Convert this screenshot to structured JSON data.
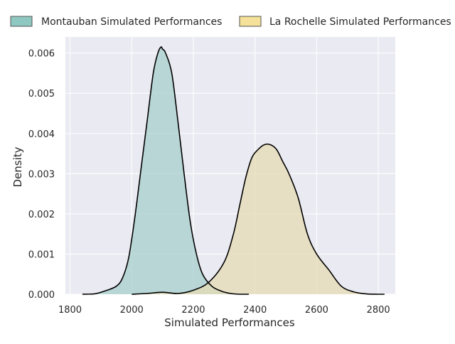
{
  "chart_data": {
    "type": "area",
    "title": "",
    "xlabel": "Simulated Performances",
    "ylabel": "Density",
    "xlim": [
      1785,
      2855
    ],
    "ylim": [
      0,
      0.0064
    ],
    "x_ticks": [
      1800,
      2000,
      2200,
      2400,
      2600,
      2800
    ],
    "y_ticks": [
      0.0,
      0.001,
      0.002,
      0.003,
      0.004,
      0.005,
      0.006
    ],
    "x_tick_labels": [
      "1800",
      "2000",
      "2200",
      "2400",
      "2600",
      "2800"
    ],
    "y_tick_labels": [
      "0.000",
      "0.001",
      "0.002",
      "0.003",
      "0.004",
      "0.005",
      "0.006"
    ],
    "grid": true,
    "legend_position": "top",
    "series": [
      {
        "name": "Montauban Simulated Performances",
        "fill_color": "#a8cfcc",
        "legend_color": "#8ec8c0",
        "x": [
          1840,
          1880,
          1920,
          1950,
          1970,
          1990,
          2010,
          2030,
          2050,
          2070,
          2085,
          2095,
          2100,
          2110,
          2130,
          2150,
          2170,
          2190,
          2210,
          2230,
          2260,
          2290,
          2320,
          2350,
          2380
        ],
        "y": [
          0.0,
          1e-05,
          0.0001,
          0.0002,
          0.0004,
          0.0009,
          0.0019,
          0.0031,
          0.0043,
          0.0055,
          0.006,
          0.00615,
          0.0061,
          0.006,
          0.0055,
          0.0043,
          0.003,
          0.0018,
          0.001,
          0.0005,
          0.0002,
          8e-05,
          2e-05,
          0.0,
          0.0
        ]
      },
      {
        "name": "La Rochelle Simulated Performances",
        "fill_color": "#e6dbb4",
        "legend_color": "#f5e199",
        "x": [
          2000,
          2050,
          2100,
          2150,
          2200,
          2250,
          2300,
          2330,
          2350,
          2370,
          2390,
          2410,
          2430,
          2450,
          2470,
          2490,
          2510,
          2540,
          2570,
          2600,
          2640,
          2680,
          2720,
          2760,
          2800,
          2820
        ],
        "y": [
          0.0,
          2e-05,
          5e-05,
          2e-05,
          0.0001,
          0.0003,
          0.0008,
          0.0015,
          0.0022,
          0.0029,
          0.0034,
          0.0036,
          0.00372,
          0.00372,
          0.0036,
          0.0033,
          0.003,
          0.0024,
          0.0015,
          0.001,
          0.0006,
          0.0002,
          6e-05,
          1e-05,
          0.0,
          0.0
        ]
      }
    ]
  }
}
